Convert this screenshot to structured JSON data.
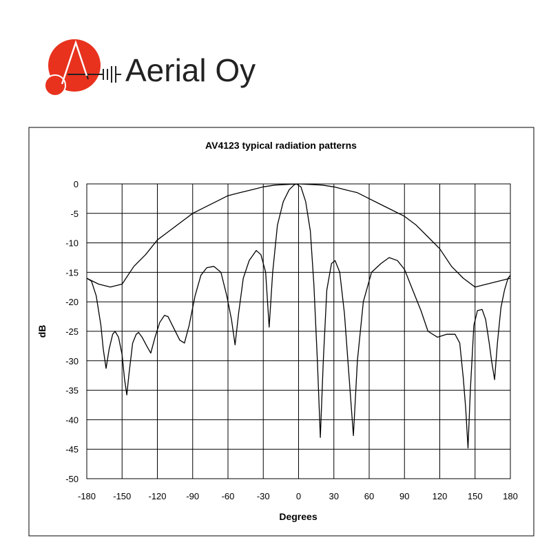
{
  "logo": {
    "text": "Aerial Oy"
  },
  "chart_data": {
    "type": "line",
    "title": "AV4123 typical radiation patterns",
    "x_label": "Degrees",
    "y_label": "dB",
    "grid": true,
    "xlim": [
      -180,
      180
    ],
    "xticks": [
      -180,
      -150,
      -120,
      -90,
      -60,
      -30,
      0,
      30,
      60,
      90,
      120,
      150,
      180
    ],
    "ylim": [
      -50,
      0
    ],
    "yticks": [
      0,
      -5,
      -10,
      -15,
      -20,
      -25,
      -30,
      -35,
      -40,
      -45,
      -50
    ],
    "series": [
      {
        "color": "#000000",
        "x": [
          -180,
          -170,
          -160,
          -150,
          -140,
          -130,
          -120,
          -110,
          -100,
          -90,
          -80,
          -70,
          -60,
          -50,
          -40,
          -30,
          -20,
          -10,
          0,
          10,
          20,
          30,
          40,
          50,
          60,
          70,
          80,
          90,
          100,
          110,
          120,
          130,
          140,
          150,
          160,
          170,
          180
        ],
        "values": [
          -16,
          -17,
          -17.5,
          -17,
          -14,
          -12,
          -9.5,
          -8,
          -6.5,
          -5,
          -4,
          -3,
          -2,
          -1.5,
          -1,
          -0.5,
          -0.2,
          -0.1,
          0,
          -0.1,
          -0.2,
          -0.5,
          -1,
          -1.5,
          -2.5,
          -3.5,
          -4.5,
          -5.5,
          -7,
          -9,
          -11,
          -14,
          -16,
          -17.5,
          -17,
          -16.5,
          -16
        ]
      },
      {
        "color": "#000000",
        "x": [
          -180,
          -176,
          -172,
          -168,
          -166,
          -163.6,
          -161,
          -158,
          -156,
          -153,
          -150,
          -148,
          -146,
          -144,
          -141,
          -138,
          -136,
          -133,
          -129,
          -125.6,
          -122,
          -118,
          -114,
          -111,
          -106,
          -101,
          -97,
          -93,
          -88,
          -83,
          -78,
          -72,
          -66,
          -61,
          -57,
          -54,
          -51,
          -47,
          -42,
          -36,
          -32,
          -28,
          -25,
          -22,
          -18,
          -13,
          -8,
          -4,
          -2,
          2,
          6,
          10,
          13,
          16,
          18.5,
          21,
          24,
          28,
          31,
          35,
          39,
          43,
          46.6,
          50,
          55,
          62,
          70,
          77,
          84,
          90,
          97,
          104,
          110,
          118,
          126,
          133,
          137,
          140,
          142,
          144,
          146,
          149,
          152,
          156,
          159,
          162,
          164,
          166.6,
          169,
          172,
          175,
          178,
          180
        ],
        "values": [
          -16,
          -16.5,
          -19,
          -24,
          -28,
          -31.3,
          -28,
          -25.5,
          -25,
          -26,
          -29,
          -33,
          -35.8,
          -32,
          -27,
          -25.5,
          -25.2,
          -26,
          -27.5,
          -28.7,
          -26,
          -23.5,
          -22.3,
          -22.5,
          -24.5,
          -26.5,
          -27,
          -24,
          -19,
          -15.5,
          -14.2,
          -14,
          -15,
          -19,
          -23,
          -27.3,
          -22,
          -16,
          -13,
          -11.3,
          -12,
          -15,
          -24.3,
          -15,
          -7,
          -3,
          -1,
          -0.2,
          0,
          -0.5,
          -3,
          -8,
          -17,
          -30,
          -43,
          -30,
          -18,
          -13.5,
          -13,
          -15,
          -22,
          -33,
          -42.7,
          -30,
          -20,
          -15,
          -13.5,
          -12.5,
          -13,
          -14.5,
          -18,
          -21.5,
          -25,
          -26,
          -25.5,
          -25.5,
          -27,
          -33,
          -38,
          -44.8,
          -35,
          -24,
          -21.5,
          -21.3,
          -23,
          -27,
          -30,
          -33.2,
          -27,
          -21,
          -18,
          -16,
          -15.5
        ]
      }
    ]
  }
}
